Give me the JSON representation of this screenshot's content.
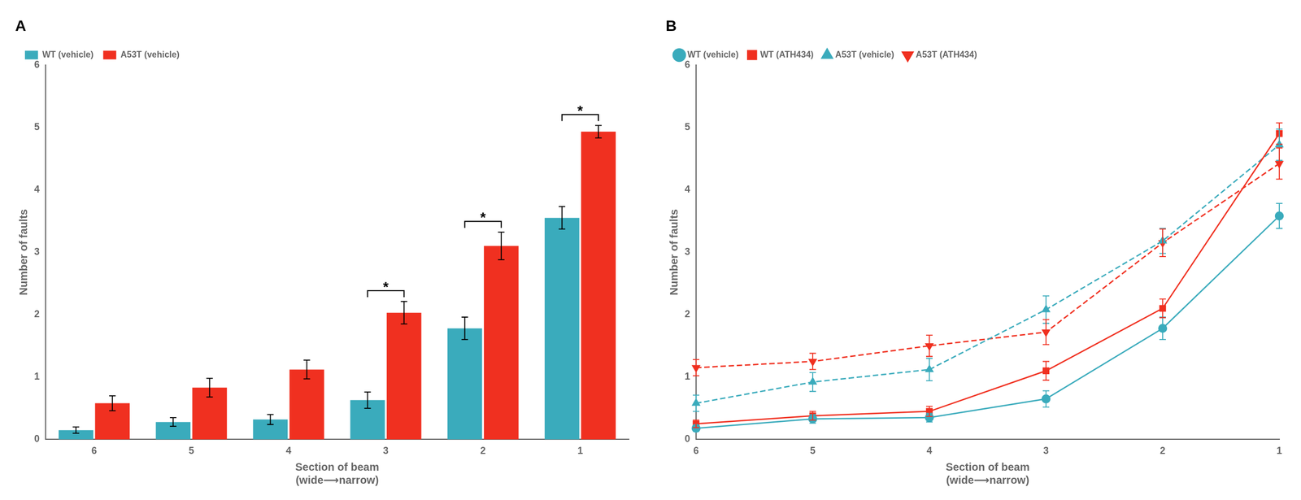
{
  "chart_data": [
    {
      "type": "bar",
      "title": "A",
      "categories": [
        "6",
        "5",
        "4",
        "3",
        "2",
        "1"
      ],
      "series": [
        {
          "name": "WT (vehicle)",
          "color": "#3aabbc",
          "values": [
            0.15,
            0.28,
            0.32,
            0.63,
            1.78,
            3.55
          ],
          "errors": [
            0.05,
            0.07,
            0.08,
            0.13,
            0.18,
            0.18
          ]
        },
        {
          "name": "A53T (vehicle)",
          "color": "#f03020",
          "values": [
            0.58,
            0.83,
            1.12,
            2.03,
            3.1,
            4.93
          ],
          "errors": [
            0.12,
            0.15,
            0.15,
            0.18,
            0.22,
            0.1
          ]
        }
      ],
      "xlabel": [
        "Section of beam",
        "(wide⟶narrow)"
      ],
      "ylabel": "Number of faults",
      "ylim": [
        0,
        6
      ],
      "yticks": [
        0,
        1,
        2,
        3,
        4,
        5,
        6
      ],
      "grid": false,
      "legend": "upper left",
      "annotations": [
        {
          "category": "3",
          "text": "*"
        },
        {
          "category": "2",
          "text": "*"
        },
        {
          "category": "1",
          "text": "*"
        }
      ]
    },
    {
      "type": "line",
      "title": "B",
      "categories": [
        "6",
        "5",
        "4",
        "3",
        "2",
        "1"
      ],
      "series": [
        {
          "name": "WT (vehicle)",
          "color": "#3aabbc",
          "marker": "circle",
          "line_style": "solid",
          "values": [
            0.18,
            0.33,
            0.35,
            0.65,
            1.78,
            3.58
          ],
          "errors": [
            0.05,
            0.07,
            0.07,
            0.13,
            0.18,
            0.2
          ]
        },
        {
          "name": "WT (ATH434)",
          "color": "#f03020",
          "marker": "square",
          "line_style": "solid",
          "values": [
            0.25,
            0.38,
            0.45,
            1.1,
            2.1,
            4.9
          ],
          "errors": [
            0.06,
            0.07,
            0.08,
            0.15,
            0.15,
            0.17
          ]
        },
        {
          "name": "A53T (vehicle)",
          "color": "#3aabbc",
          "marker": "triangle-up",
          "line_style": "dashed",
          "values": [
            0.58,
            0.92,
            1.12,
            2.08,
            3.18,
            4.72
          ],
          "errors": [
            0.13,
            0.15,
            0.18,
            0.22,
            0.2,
            0.25
          ]
        },
        {
          "name": "A53T (ATH434)",
          "color": "#f03020",
          "marker": "triangle-down",
          "line_style": "dashed",
          "values": [
            1.15,
            1.25,
            1.5,
            1.72,
            3.15,
            4.42
          ],
          "errors": [
            0.13,
            0.13,
            0.17,
            0.2,
            0.22,
            0.25
          ]
        }
      ],
      "xlabel": [
        "Section of beam",
        "(wide⟶narrow)"
      ],
      "ylabel": "Number of faults",
      "ylim": [
        0,
        6
      ],
      "yticks": [
        0,
        1,
        2,
        3,
        4,
        5,
        6
      ],
      "grid": false,
      "legend": "upper left"
    }
  ]
}
